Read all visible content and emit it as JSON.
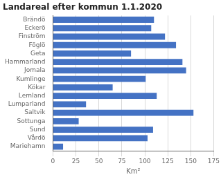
{
  "chart_data": {
    "type": "bar",
    "orientation": "horizontal",
    "title": "Landareal efter kommun 1.1.2020",
    "categories": [
      "Brändö",
      "Eckerö",
      "Finström",
      "Föglö",
      "Geta",
      "Hammarland",
      "Jomala",
      "Kumlinge",
      "Kökar",
      "Lemland",
      "Lumparland",
      "Saltvik",
      "Sottunga",
      "Sund",
      "Vårdö",
      "Mariehamn"
    ],
    "values": [
      110,
      107,
      122,
      134,
      85,
      141,
      145,
      101,
      65,
      113,
      36,
      153,
      28,
      109,
      103,
      11
    ],
    "color": "#4472C4",
    "xlabel": "Km²",
    "xlim": [
      0,
      175
    ],
    "xticks": [
      0,
      25,
      50,
      75,
      100,
      125,
      150,
      175
    ],
    "grid": true
  }
}
